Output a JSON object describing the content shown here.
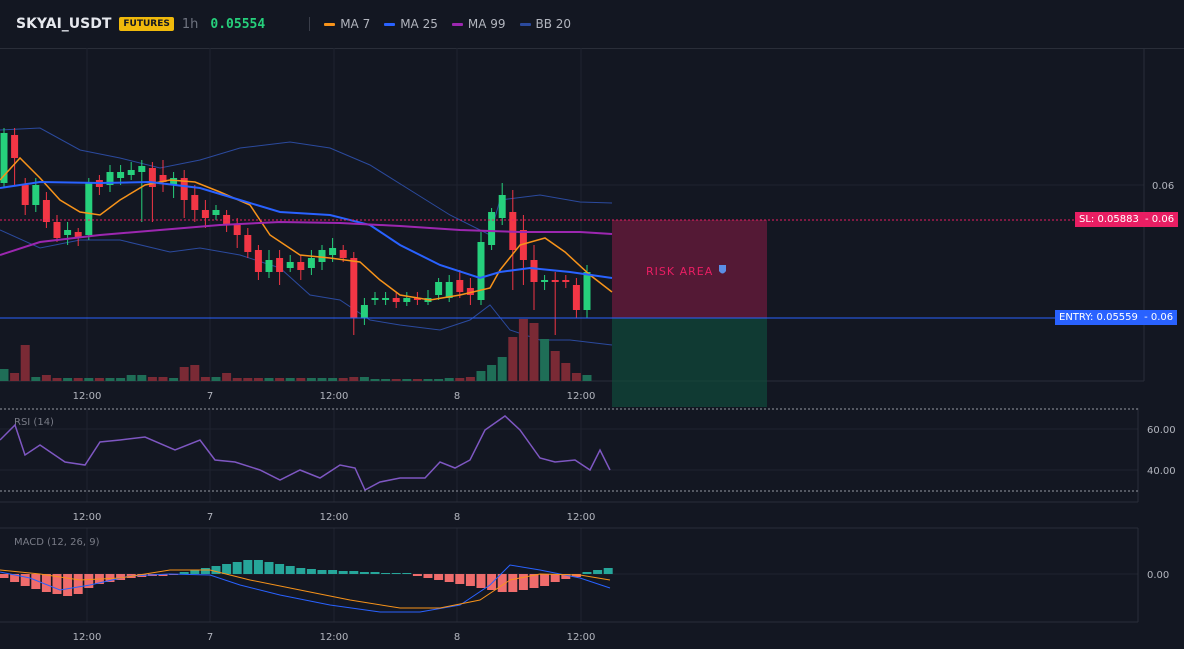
{
  "header": {
    "symbol": "SKYAI_USDT",
    "badge": "FUTURES",
    "timeframe": "1h",
    "last_price": "0.05554",
    "indicators": [
      {
        "label": "MA 7",
        "color": "#f7931a"
      },
      {
        "label": "MA 25",
        "color": "#2962ff"
      },
      {
        "label": "MA 99",
        "color": "#9c27b0"
      },
      {
        "label": "BB 20",
        "color": "#1e3a8a"
      }
    ]
  },
  "main_chart": {
    "price_scale_label": "0.06",
    "sl_label": "SL: 0.05883",
    "sl_scale": "- 0.06",
    "entry_label": "ENTRY: 0.05559",
    "entry_scale": "- 0.06",
    "risk_label": "RISK AREA",
    "colors": {
      "up": "#26d07c",
      "down": "#f23645",
      "sl_bg": "#e91e63",
      "entry_bg": "#2962ff"
    }
  },
  "time_axis": [
    "12:00",
    "7",
    "12:00",
    "8",
    "12:00"
  ],
  "rsi": {
    "title": "RSI (14)",
    "scale": [
      "60.00",
      "40.00"
    ],
    "color": "#7e57c2"
  },
  "macd": {
    "title": "MACD (12, 26, 9)",
    "scale": [
      "0.00"
    ]
  }
}
